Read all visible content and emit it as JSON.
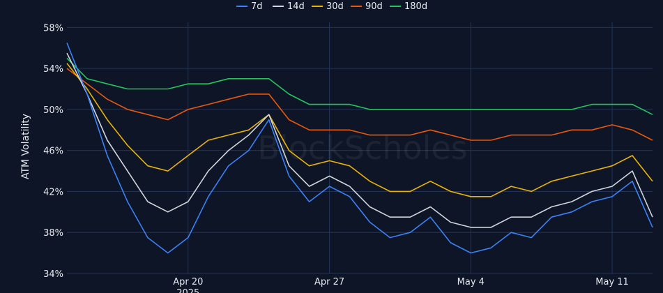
{
  "watermark": "BlockScholes",
  "chart_data": {
    "type": "line",
    "xlabel": "",
    "ylabel": "ATM Volatility",
    "ylim": [
      34,
      58.5
    ],
    "xlim": [
      "2025-04-14",
      "2025-05-13"
    ],
    "y_ticks": [
      "58%",
      "54%",
      "50%",
      "46%",
      "42%",
      "38%",
      "34%"
    ],
    "x_ticks": [
      {
        "label": "Apr 20",
        "sublabel": "2025",
        "date": "2025-04-20"
      },
      {
        "label": "Apr 27",
        "sublabel": "",
        "date": "2025-04-27"
      },
      {
        "label": "May 4",
        "sublabel": "",
        "date": "2025-05-04"
      },
      {
        "label": "May 11",
        "sublabel": "",
        "date": "2025-05-11"
      }
    ],
    "grid": true,
    "legend_position": "top",
    "x": [
      "2025-04-14",
      "2025-04-15",
      "2025-04-16",
      "2025-04-17",
      "2025-04-18",
      "2025-04-19",
      "2025-04-20",
      "2025-04-21",
      "2025-04-22",
      "2025-04-23",
      "2025-04-24",
      "2025-04-25",
      "2025-04-26",
      "2025-04-27",
      "2025-04-28",
      "2025-04-29",
      "2025-04-30",
      "2025-05-01",
      "2025-05-02",
      "2025-05-03",
      "2025-05-04",
      "2025-05-05",
      "2025-05-06",
      "2025-05-07",
      "2025-05-08",
      "2025-05-09",
      "2025-05-10",
      "2025-05-11",
      "2025-05-12",
      "2025-05-13"
    ],
    "series": [
      {
        "name": "7d",
        "color": "#3b82f6",
        "values": [
          56.5,
          51.5,
          45.5,
          41.0,
          37.5,
          36.0,
          37.5,
          41.5,
          44.5,
          46.0,
          49.0,
          43.5,
          41.0,
          42.5,
          41.5,
          39.0,
          37.5,
          38.0,
          39.5,
          37.0,
          36.0,
          36.5,
          38.0,
          37.5,
          39.5,
          40.0,
          41.0,
          41.5,
          43.0,
          38.5
        ]
      },
      {
        "name": "14d",
        "color": "#d1d5db",
        "values": [
          55.5,
          51.5,
          47.0,
          44.0,
          41.0,
          40.0,
          41.0,
          44.0,
          46.0,
          47.5,
          49.5,
          44.5,
          42.5,
          43.5,
          42.5,
          40.5,
          39.5,
          39.5,
          40.5,
          39.0,
          38.5,
          38.5,
          39.5,
          39.5,
          40.5,
          41.0,
          42.0,
          42.5,
          44.0,
          39.5
        ]
      },
      {
        "name": "30d",
        "color": "#eab308",
        "values": [
          54.5,
          52.0,
          49.0,
          46.5,
          44.5,
          44.0,
          45.5,
          47.0,
          47.5,
          48.0,
          49.5,
          46.0,
          44.5,
          45.0,
          44.5,
          43.0,
          42.0,
          42.0,
          43.0,
          42.0,
          41.5,
          41.5,
          42.5,
          42.0,
          43.0,
          43.5,
          44.0,
          44.5,
          45.5,
          43.0
        ]
      },
      {
        "name": "90d",
        "color": "#ea580c",
        "values": [
          54.0,
          52.5,
          51.0,
          50.0,
          49.5,
          49.0,
          50.0,
          50.5,
          51.0,
          51.5,
          51.5,
          49.0,
          48.0,
          48.0,
          48.0,
          47.5,
          47.5,
          47.5,
          48.0,
          47.5,
          47.0,
          47.0,
          47.5,
          47.5,
          47.5,
          48.0,
          48.0,
          48.5,
          48.0,
          47.0
        ]
      },
      {
        "name": "180d",
        "color": "#22c55e",
        "values": [
          55.0,
          53.0,
          52.5,
          52.0,
          52.0,
          52.0,
          52.5,
          52.5,
          53.0,
          53.0,
          53.0,
          51.5,
          50.5,
          50.5,
          50.5,
          50.0,
          50.0,
          50.0,
          50.0,
          50.0,
          50.0,
          50.0,
          50.0,
          50.0,
          50.0,
          50.0,
          50.5,
          50.5,
          50.5,
          49.5
        ]
      }
    ]
  }
}
